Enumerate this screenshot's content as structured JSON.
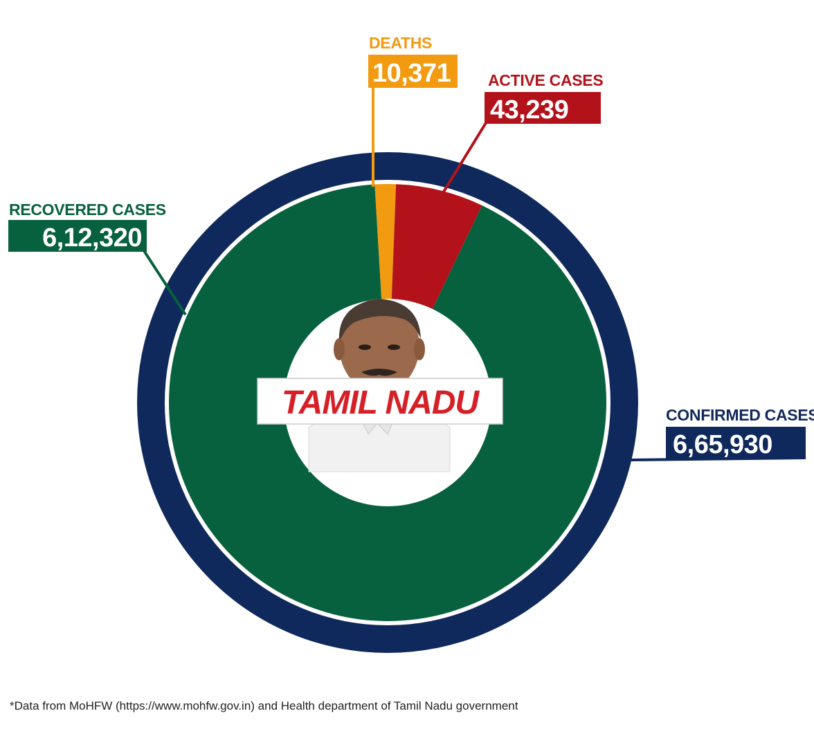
{
  "title": "TAMIL NADU",
  "footnote": "*Data from MoHFW (https://www.mohfw.gov.in) and Health department of Tamil Nadu government",
  "colors": {
    "confirmed": "#10295c",
    "recovered": "#07613e",
    "deaths": "#f29a10",
    "active": "#b3121a",
    "title": "#d61f26",
    "background": "#ffffff"
  },
  "chart_data": {
    "type": "pie",
    "total": {
      "label": "CONFIRMED CASES",
      "value": 665930,
      "display": "6,65,930"
    },
    "slices": [
      {
        "key": "deaths",
        "label": "DEATHS",
        "value": 10371,
        "display": "10,371"
      },
      {
        "key": "active",
        "label": "ACTIVE CASES",
        "value": 43239,
        "display": "43,239"
      },
      {
        "key": "recovered",
        "label": "RECOVERED CASES",
        "value": 612320,
        "display": "6,12,320"
      }
    ]
  }
}
